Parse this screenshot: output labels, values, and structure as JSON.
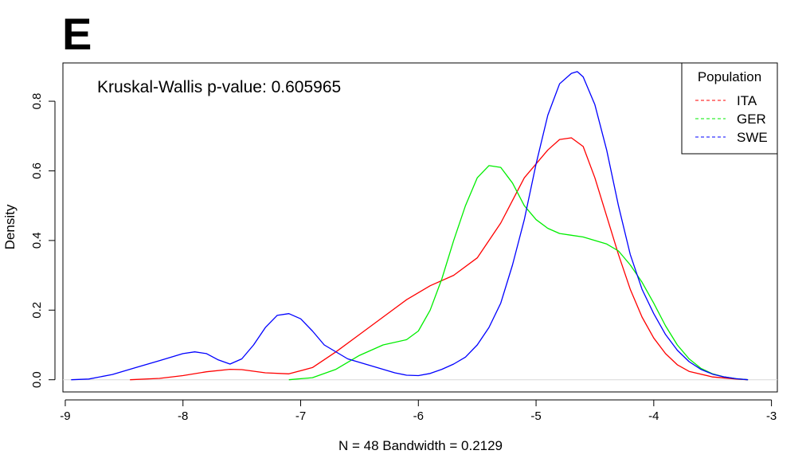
{
  "panel_letter": "E",
  "annotation": "Kruskal-Wallis p-value: 0.605965",
  "chart_data": {
    "type": "line",
    "title": "",
    "xlabel": "N = 48   Bandwidth = 0.2129",
    "ylabel": "Density",
    "xlim": [
      -9.02,
      -2.95
    ],
    "ylim": [
      -0.035,
      0.91
    ],
    "xticks": [
      -9,
      -8,
      -7,
      -6,
      -5,
      -4,
      -3
    ],
    "xtick_labels": [
      "-9",
      "-8",
      "-7",
      "-6",
      "-5",
      "-4",
      "-3"
    ],
    "yticks": [
      0.0,
      0.2,
      0.4,
      0.6,
      0.8
    ],
    "ytick_labels": [
      "0.0",
      "0.2",
      "0.4",
      "0.6",
      "0.8"
    ],
    "grid": false,
    "legend": {
      "title": "Population",
      "position": "top-right",
      "line_style": "dashed"
    },
    "series": [
      {
        "name": "ITA",
        "color": "#ff0000",
        "x": [
          -8.45,
          -8.2,
          -8.0,
          -7.8,
          -7.6,
          -7.5,
          -7.3,
          -7.1,
          -6.9,
          -6.7,
          -6.5,
          -6.3,
          -6.1,
          -5.9,
          -5.7,
          -5.5,
          -5.3,
          -5.1,
          -4.9,
          -4.8,
          -4.7,
          -4.6,
          -4.5,
          -4.4,
          -4.3,
          -4.2,
          -4.1,
          -4.0,
          -3.9,
          -3.8,
          -3.7,
          -3.5,
          -3.3,
          -3.2
        ],
        "y": [
          0.0,
          0.004,
          0.012,
          0.023,
          0.03,
          0.029,
          0.02,
          0.017,
          0.035,
          0.08,
          0.13,
          0.18,
          0.23,
          0.27,
          0.3,
          0.35,
          0.45,
          0.58,
          0.66,
          0.69,
          0.695,
          0.67,
          0.58,
          0.47,
          0.36,
          0.26,
          0.18,
          0.12,
          0.075,
          0.043,
          0.024,
          0.008,
          0.002,
          0.0
        ]
      },
      {
        "name": "GER",
        "color": "#00ee00",
        "x": [
          -7.1,
          -6.9,
          -6.7,
          -6.5,
          -6.3,
          -6.1,
          -6.0,
          -5.9,
          -5.8,
          -5.7,
          -5.6,
          -5.5,
          -5.4,
          -5.3,
          -5.2,
          -5.1,
          -5.0,
          -4.9,
          -4.8,
          -4.7,
          -4.6,
          -4.5,
          -4.4,
          -4.3,
          -4.2,
          -4.1,
          -4.0,
          -3.9,
          -3.8,
          -3.7,
          -3.6,
          -3.5,
          -3.4,
          -3.3,
          -3.2
        ],
        "y": [
          0.0,
          0.006,
          0.03,
          0.07,
          0.1,
          0.115,
          0.14,
          0.2,
          0.29,
          0.4,
          0.5,
          0.58,
          0.615,
          0.61,
          0.565,
          0.5,
          0.46,
          0.435,
          0.42,
          0.415,
          0.41,
          0.4,
          0.39,
          0.37,
          0.33,
          0.28,
          0.22,
          0.155,
          0.1,
          0.06,
          0.033,
          0.017,
          0.008,
          0.003,
          0.0
        ]
      },
      {
        "name": "SWE",
        "color": "#0000ff",
        "x": [
          -8.95,
          -8.8,
          -8.6,
          -8.4,
          -8.2,
          -8.0,
          -7.9,
          -7.8,
          -7.7,
          -7.6,
          -7.5,
          -7.4,
          -7.3,
          -7.2,
          -7.1,
          -7.0,
          -6.9,
          -6.8,
          -6.6,
          -6.4,
          -6.2,
          -6.1,
          -6.0,
          -5.9,
          -5.8,
          -5.7,
          -5.6,
          -5.5,
          -5.4,
          -5.3,
          -5.2,
          -5.1,
          -5.0,
          -4.9,
          -4.8,
          -4.7,
          -4.65,
          -4.6,
          -4.5,
          -4.4,
          -4.3,
          -4.2,
          -4.1,
          -4.0,
          -3.9,
          -3.8,
          -3.7,
          -3.6,
          -3.5,
          -3.4,
          -3.3,
          -3.2
        ],
        "y": [
          0.0,
          0.002,
          0.015,
          0.035,
          0.055,
          0.075,
          0.08,
          0.075,
          0.057,
          0.045,
          0.06,
          0.1,
          0.15,
          0.185,
          0.19,
          0.175,
          0.14,
          0.1,
          0.06,
          0.04,
          0.02,
          0.013,
          0.012,
          0.018,
          0.03,
          0.045,
          0.065,
          0.1,
          0.15,
          0.22,
          0.33,
          0.46,
          0.62,
          0.76,
          0.85,
          0.88,
          0.885,
          0.87,
          0.79,
          0.66,
          0.5,
          0.36,
          0.26,
          0.19,
          0.13,
          0.085,
          0.052,
          0.03,
          0.016,
          0.008,
          0.003,
          0.0
        ]
      }
    ]
  }
}
